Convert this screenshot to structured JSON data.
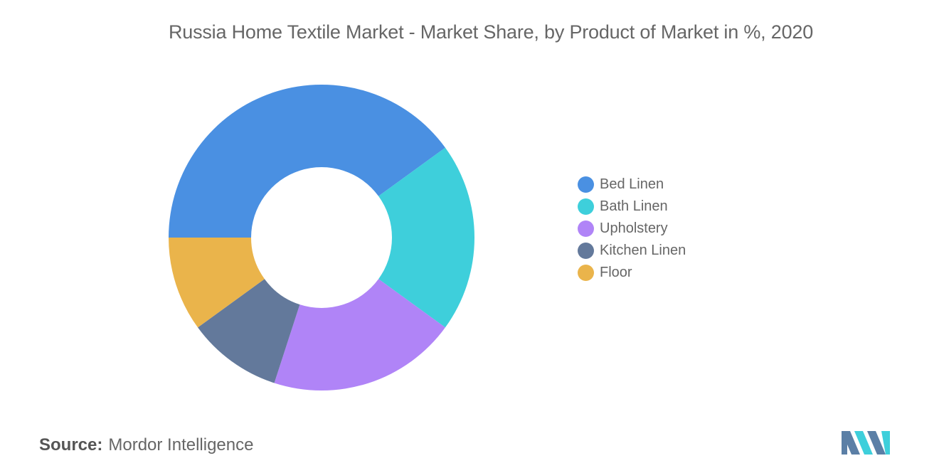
{
  "chart_data": {
    "type": "pie",
    "title": "Russia Home Textile Market - Market Share, by Product of Market in %, 2020",
    "donut": true,
    "legend_position": "right",
    "categories": [
      "Bed Linen",
      "Bath Linen",
      "Upholstery",
      "Kitchen Linen",
      "Floor"
    ],
    "values": [
      40,
      20,
      20,
      10,
      10
    ],
    "colors": [
      "#4a90e2",
      "#3ecfdb",
      "#b084f7",
      "#63799b",
      "#eab44b"
    ]
  },
  "source": {
    "label": "Source:",
    "text": "Mordor Intelligence"
  },
  "logo": {
    "icon": "mordor-intelligence-logo",
    "colors": [
      "#5b7fa6",
      "#3ecfdb"
    ]
  }
}
